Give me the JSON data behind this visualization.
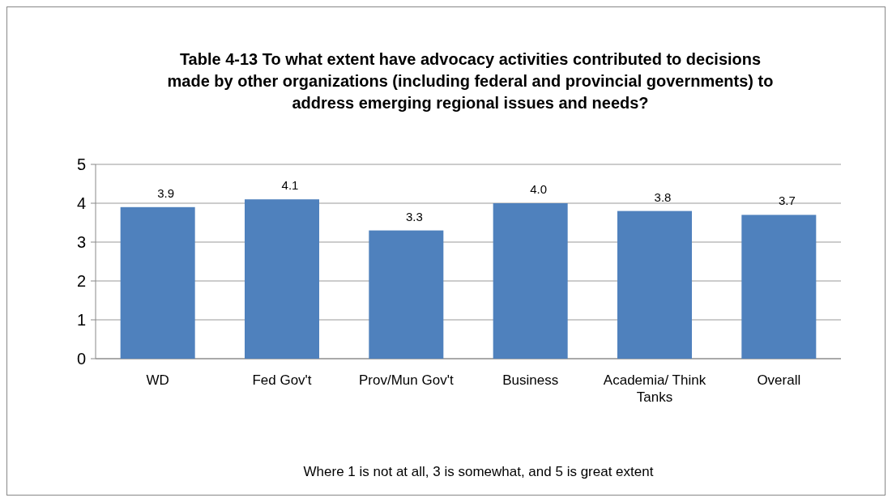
{
  "chart_data": {
    "type": "bar",
    "title": "Table 4-13  To what extent have advocacy activities contributed to decisions made by other organizations (including federal and provincial governments) to address emerging regional issues and needs?",
    "categories": [
      "WD",
      "Fed Gov't",
      "Prov/Mun Gov't",
      "Business",
      "Academia/ Think Tanks",
      "Overall"
    ],
    "values": [
      3.9,
      4.1,
      3.3,
      4.0,
      3.8,
      3.7
    ],
    "color": "#4f81bd",
    "ylim": [
      0,
      5
    ],
    "yticks": [
      0,
      1,
      2,
      3,
      4,
      5
    ],
    "grid": "y",
    "value_labels": [
      "3.9",
      "4.1",
      "3.3",
      "4.0",
      "3.8",
      "3.7"
    ],
    "annotations": [
      "Where 1 is not at all, 3 is somewhat, and 5 is great extent"
    ]
  }
}
